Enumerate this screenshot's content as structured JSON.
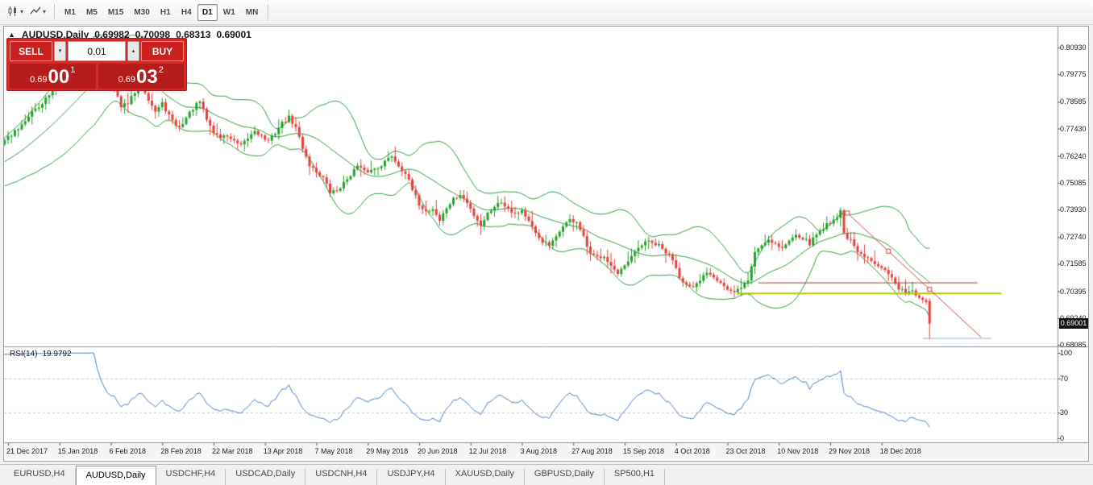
{
  "colors": {
    "bull": "#22a12c",
    "bear": "#e2403a",
    "band": "#2e9c3f",
    "rsi_line": "#4a7fc1",
    "rsi_level": "#c0c0c0",
    "trendline": "#cc4040",
    "hline_red": "#a83434",
    "hline_yellow": "#b9c400",
    "hline_blue": "#8cb0d6",
    "separator": "#8f8f8f",
    "tick": "#555555",
    "panel_red": "#d52a2a",
    "price_badge_bg": "#141414"
  },
  "icons": {
    "caret": "▾",
    "spinner_up": "▴",
    "spinner_down": "▾",
    "collapse": "▲"
  },
  "toolbar": {
    "timeframes": [
      {
        "label": "M1",
        "active": false
      },
      {
        "label": "M5",
        "active": false
      },
      {
        "label": "M15",
        "active": false
      },
      {
        "label": "M30",
        "active": false
      },
      {
        "label": "H1",
        "active": false
      },
      {
        "label": "H4",
        "active": false
      },
      {
        "label": "D1",
        "active": true
      },
      {
        "label": "W1",
        "active": false
      },
      {
        "label": "MN",
        "active": false
      }
    ]
  },
  "chart_header": {
    "symbol": "AUDUSD,Daily",
    "open": "0.69982",
    "high": "0.70098",
    "low": "0.68313",
    "close": "0.69001"
  },
  "trade_panel": {
    "sell_label": "SELL",
    "buy_label": "BUY",
    "lot_value": "0.01",
    "bid": {
      "small": "0.69",
      "big": "00",
      "sup": "1"
    },
    "ask": {
      "small": "0.69",
      "big": "03",
      "sup": "2"
    }
  },
  "price_axis": [
    "0.80930",
    "0.79775",
    "0.78585",
    "0.77430",
    "0.76240",
    "0.75085",
    "0.73930",
    "0.72740",
    "0.71585",
    "0.70395",
    "0.69240",
    "0.68085"
  ],
  "price_badge": "0.69001",
  "rsi": {
    "name": "RSI(14)",
    "value": "19.9792",
    "axis": [
      "100",
      "70",
      "30",
      "0"
    ]
  },
  "date_axis": [
    "21 Dec 2017",
    "15 Jan 2018",
    "6 Feb 2018",
    "28 Feb 2018",
    "22 Mar 2018",
    "13 Apr 2018",
    "7 May 2018",
    "29 May 2018",
    "20 Jun 2018",
    "12 Jul 2018",
    "3 Aug 2018",
    "27 Aug 2018",
    "15 Sep 2018",
    "4 Oct 2018",
    "23 Oct 2018",
    "10 Nov 2018",
    "29 Nov 2018",
    "18 Dec 2018"
  ],
  "tabs": [
    {
      "label": "EURUSD,H4",
      "active": false
    },
    {
      "label": "AUDUSD,Daily",
      "active": true
    },
    {
      "label": "USDCHF,H4",
      "active": false
    },
    {
      "label": "USDCAD,Daily",
      "active": false
    },
    {
      "label": "USDCNH,H4",
      "active": false
    },
    {
      "label": "USDJPY,H4",
      "active": false
    },
    {
      "label": "XAUUSD,Daily",
      "active": false
    },
    {
      "label": "GBPUSD,Daily",
      "active": false
    },
    {
      "label": "SP500,H1",
      "active": false
    }
  ],
  "chart_data": {
    "type": "candlestick",
    "symbol": "AUDUSD",
    "timeframe": "Daily",
    "last_ohlc": {
      "open": 0.69982,
      "high": 0.70098,
      "low": 0.68313,
      "close": 0.69001
    },
    "price_axis_ticks": [
      0.8093,
      0.79775,
      0.78585,
      0.7743,
      0.7624,
      0.75085,
      0.7393,
      0.7274,
      0.71585,
      0.70395,
      0.6924,
      0.68085
    ],
    "rsi_axis_ticks": [
      100,
      70,
      30,
      0
    ],
    "bars_total": 270,
    "warmup_bars": 20,
    "seed": 42,
    "label_every_bars": 15,
    "close_anchors": [
      [
        -20,
        0.7525
      ],
      [
        -14,
        0.756
      ],
      [
        -8,
        0.7618
      ],
      [
        -4,
        0.7662
      ],
      [
        0,
        0.7705
      ],
      [
        3,
        0.7748
      ],
      [
        6,
        0.78
      ],
      [
        10,
        0.7855
      ],
      [
        13,
        0.7902
      ],
      [
        16,
        0.7962
      ],
      [
        19,
        0.7996
      ],
      [
        22,
        0.8048
      ],
      [
        24,
        0.8096
      ],
      [
        25,
        0.8118
      ],
      [
        27,
        0.8036
      ],
      [
        29,
        0.7956
      ],
      [
        31,
        0.7926
      ],
      [
        33,
        0.7832
      ],
      [
        35,
        0.7856
      ],
      [
        37,
        0.7896
      ],
      [
        39,
        0.7934
      ],
      [
        41,
        0.7872
      ],
      [
        43,
        0.7816
      ],
      [
        45,
        0.785
      ],
      [
        47,
        0.78
      ],
      [
        48,
        0.7772
      ],
      [
        50,
        0.7746
      ],
      [
        52,
        0.779
      ],
      [
        54,
        0.783
      ],
      [
        56,
        0.7858
      ],
      [
        58,
        0.7782
      ],
      [
        60,
        0.7726
      ],
      [
        62,
        0.7706
      ],
      [
        64,
        0.7712
      ],
      [
        66,
        0.7686
      ],
      [
        68,
        0.7666
      ],
      [
        70,
        0.77
      ],
      [
        72,
        0.7736
      ],
      [
        74,
        0.771
      ],
      [
        76,
        0.7686
      ],
      [
        78,
        0.7726
      ],
      [
        80,
        0.7766
      ],
      [
        82,
        0.779
      ],
      [
        84,
        0.7746
      ],
      [
        86,
        0.766
      ],
      [
        88,
        0.7586
      ],
      [
        90,
        0.7556
      ],
      [
        92,
        0.753
      ],
      [
        94,
        0.7466
      ],
      [
        96,
        0.7476
      ],
      [
        98,
        0.7506
      ],
      [
        100,
        0.7546
      ],
      [
        102,
        0.758
      ],
      [
        104,
        0.7556
      ],
      [
        106,
        0.7562
      ],
      [
        108,
        0.7576
      ],
      [
        110,
        0.76
      ],
      [
        112,
        0.7626
      ],
      [
        114,
        0.7582
      ],
      [
        116,
        0.7552
      ],
      [
        118,
        0.7476
      ],
      [
        120,
        0.7416
      ],
      [
        122,
        0.7386
      ],
      [
        124,
        0.7396
      ],
      [
        126,
        0.7346
      ],
      [
        128,
        0.74
      ],
      [
        130,
        0.7436
      ],
      [
        132,
        0.7456
      ],
      [
        134,
        0.742
      ],
      [
        136,
        0.737
      ],
      [
        138,
        0.7326
      ],
      [
        140,
        0.7376
      ],
      [
        142,
        0.741
      ],
      [
        144,
        0.7426
      ],
      [
        146,
        0.74
      ],
      [
        148,
        0.7376
      ],
      [
        150,
        0.739
      ],
      [
        152,
        0.734
      ],
      [
        154,
        0.7286
      ],
      [
        156,
        0.7256
      ],
      [
        158,
        0.7236
      ],
      [
        160,
        0.727
      ],
      [
        162,
        0.7326
      ],
      [
        164,
        0.7346
      ],
      [
        166,
        0.734
      ],
      [
        168,
        0.727
      ],
      [
        170,
        0.7196
      ],
      [
        172,
        0.7186
      ],
      [
        174,
        0.7196
      ],
      [
        176,
        0.715
      ],
      [
        178,
        0.711
      ],
      [
        180,
        0.7146
      ],
      [
        182,
        0.7186
      ],
      [
        184,
        0.7226
      ],
      [
        186,
        0.7256
      ],
      [
        188,
        0.7246
      ],
      [
        190,
        0.7236
      ],
      [
        192,
        0.7206
      ],
      [
        194,
        0.718
      ],
      [
        196,
        0.7106
      ],
      [
        198,
        0.7066
      ],
      [
        200,
        0.705
      ],
      [
        202,
        0.7086
      ],
      [
        204,
        0.7126
      ],
      [
        206,
        0.7106
      ],
      [
        208,
        0.708
      ],
      [
        210,
        0.7046
      ],
      [
        212,
        0.703
      ],
      [
        214,
        0.706
      ],
      [
        216,
        0.7086
      ],
      [
        218,
        0.721
      ],
      [
        220,
        0.724
      ],
      [
        222,
        0.7266
      ],
      [
        224,
        0.7246
      ],
      [
        226,
        0.7226
      ],
      [
        228,
        0.7256
      ],
      [
        230,
        0.729
      ],
      [
        232,
        0.727
      ],
      [
        234,
        0.7246
      ],
      [
        236,
        0.7286
      ],
      [
        238,
        0.7316
      ],
      [
        240,
        0.734
      ],
      [
        242,
        0.7362
      ],
      [
        243,
        0.7386
      ],
      [
        244,
        0.729
      ],
      [
        246,
        0.7256
      ],
      [
        248,
        0.7206
      ],
      [
        250,
        0.7186
      ],
      [
        252,
        0.717
      ],
      [
        254,
        0.7156
      ],
      [
        256,
        0.714
      ],
      [
        258,
        0.7096
      ],
      [
        260,
        0.7046
      ],
      [
        262,
        0.7036
      ],
      [
        264,
        0.7046
      ],
      [
        266,
        0.7006
      ],
      [
        268,
        0.6998
      ]
    ],
    "last_bar": {
      "open": 0.69982,
      "high": 0.70098,
      "low": 0.68313,
      "close": 0.69001
    },
    "indicators": {
      "bollinger": {
        "period": 20,
        "deviations": 2
      },
      "rsi": {
        "period": 14,
        "current": 19.9792,
        "levels": [
          70,
          30
        ]
      }
    },
    "objects": {
      "trendline": {
        "from_bar": 245,
        "from_price": 0.7378,
        "to_bar": 269,
        "to_price": 0.7048,
        "ray_to_bar": 284
      },
      "red_hline": {
        "price": 0.7078,
        "from_bar": 219,
        "to_bar": 283
      },
      "yellow_hline": {
        "price": 0.7032,
        "from_bar": 213,
        "to_bar": 290
      },
      "blue_hline": {
        "price": 0.6838,
        "from_bar": 267,
        "to_bar": 287
      }
    }
  }
}
